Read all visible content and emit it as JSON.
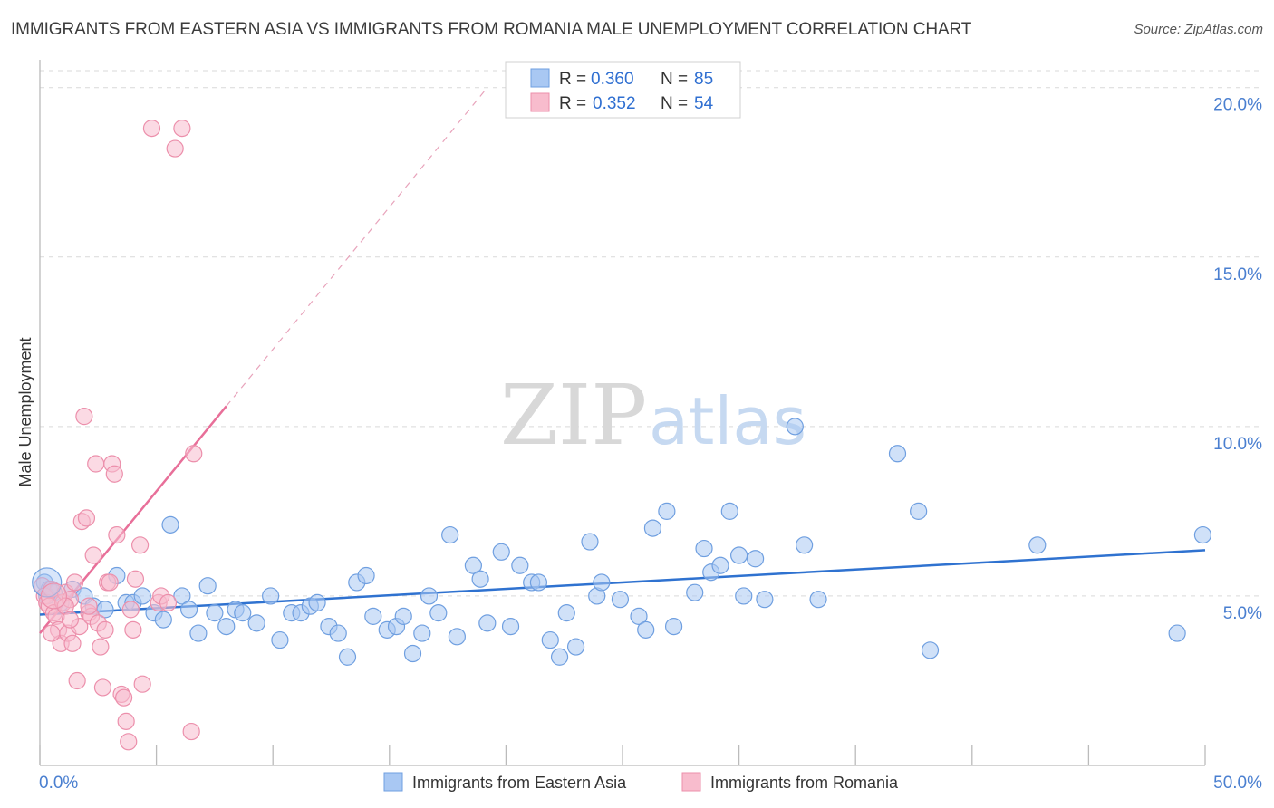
{
  "title": "IMMIGRANTS FROM EASTERN ASIA VS IMMIGRANTS FROM ROMANIA MALE UNEMPLOYMENT CORRELATION CHART",
  "source": "Source: ZipAtlas.com",
  "watermark": {
    "zip": "ZIP",
    "atlas": "atlas"
  },
  "colors": {
    "blue_fill": "#a9c8f3",
    "blue_stroke": "#6f9fe0",
    "blue_line": "#2f72d0",
    "pink_fill": "#f8bccd",
    "pink_stroke": "#ec8fab",
    "pink_line": "#e86f99",
    "grid": "#d9d9d9",
    "tick_text": "#4a7fd0"
  },
  "legend": {
    "series1": {
      "r_label": "R =",
      "r_value": "0.360",
      "n_label": "N =",
      "n_value": "85"
    },
    "series2": {
      "r_label": "R =",
      "r_value": "0.352",
      "n_label": "N =",
      "n_value": "54"
    }
  },
  "chart_data": {
    "type": "scatter",
    "title": "IMMIGRANTS FROM EASTERN ASIA VS IMMIGRANTS FROM ROMANIA MALE UNEMPLOYMENT CORRELATION CHART",
    "xlabel": "",
    "ylabel": "Male Unemployment",
    "xlim": [
      0,
      50
    ],
    "ylim": [
      0,
      20.5
    ],
    "x_tick_labels": [
      "0.0%",
      "50.0%"
    ],
    "y_ticks": [
      5,
      10,
      15,
      20
    ],
    "y_tick_labels": [
      "5.0%",
      "10.0%",
      "15.0%",
      "20.0%"
    ],
    "grid": true,
    "legend_position": "bottom",
    "series": [
      {
        "name": "Immigrants from Eastern Asia",
        "color": "blue",
        "r": 0.36,
        "n": 85,
        "trend": {
          "x": [
            0,
            50
          ],
          "y": [
            4.45,
            6.35
          ]
        },
        "points": [
          [
            0.2,
            5.4
          ],
          [
            0.3,
            5.0
          ],
          [
            0.4,
            5.2
          ],
          [
            0.6,
            5.1
          ],
          [
            0.9,
            4.8
          ],
          [
            1.4,
            5.2
          ],
          [
            1.9,
            5.0
          ],
          [
            2.3,
            4.7
          ],
          [
            2.8,
            4.6
          ],
          [
            3.3,
            5.6
          ],
          [
            3.7,
            4.8
          ],
          [
            4.0,
            4.8
          ],
          [
            4.4,
            5.0
          ],
          [
            4.9,
            4.5
          ],
          [
            5.3,
            4.3
          ],
          [
            5.6,
            7.1
          ],
          [
            6.1,
            5.0
          ],
          [
            6.4,
            4.6
          ],
          [
            6.8,
            3.9
          ],
          [
            7.2,
            5.3
          ],
          [
            7.5,
            4.5
          ],
          [
            8.0,
            4.1
          ],
          [
            8.4,
            4.6
          ],
          [
            8.7,
            4.5
          ],
          [
            9.3,
            4.2
          ],
          [
            9.9,
            5.0
          ],
          [
            10.3,
            3.7
          ],
          [
            10.8,
            4.5
          ],
          [
            11.2,
            4.5
          ],
          [
            11.6,
            4.7
          ],
          [
            11.9,
            4.8
          ],
          [
            12.4,
            4.1
          ],
          [
            12.8,
            3.9
          ],
          [
            13.2,
            3.2
          ],
          [
            13.6,
            5.4
          ],
          [
            14.0,
            5.6
          ],
          [
            14.3,
            4.4
          ],
          [
            14.9,
            4.0
          ],
          [
            15.3,
            4.1
          ],
          [
            15.6,
            4.4
          ],
          [
            16.0,
            3.3
          ],
          [
            16.4,
            3.9
          ],
          [
            16.7,
            5.0
          ],
          [
            17.1,
            4.5
          ],
          [
            17.6,
            6.8
          ],
          [
            17.9,
            3.8
          ],
          [
            18.6,
            5.9
          ],
          [
            18.9,
            5.5
          ],
          [
            19.2,
            4.2
          ],
          [
            19.8,
            6.3
          ],
          [
            20.2,
            4.1
          ],
          [
            20.6,
            5.9
          ],
          [
            21.1,
            5.4
          ],
          [
            21.4,
            5.4
          ],
          [
            21.9,
            3.7
          ],
          [
            22.3,
            3.2
          ],
          [
            22.6,
            4.5
          ],
          [
            23.0,
            3.5
          ],
          [
            23.6,
            6.6
          ],
          [
            23.9,
            5.0
          ],
          [
            24.1,
            5.4
          ],
          [
            24.9,
            4.9
          ],
          [
            25.7,
            4.4
          ],
          [
            26.0,
            4.0
          ],
          [
            26.3,
            7.0
          ],
          [
            26.9,
            7.5
          ],
          [
            27.2,
            4.1
          ],
          [
            28.1,
            5.1
          ],
          [
            28.5,
            6.4
          ],
          [
            28.8,
            5.7
          ],
          [
            29.2,
            5.9
          ],
          [
            29.6,
            7.5
          ],
          [
            30.0,
            6.2
          ],
          [
            30.2,
            5.0
          ],
          [
            30.7,
            6.1
          ],
          [
            31.1,
            4.9
          ],
          [
            32.4,
            10.0
          ],
          [
            32.8,
            6.5
          ],
          [
            33.4,
            4.9
          ],
          [
            36.8,
            9.2
          ],
          [
            37.7,
            7.5
          ],
          [
            38.2,
            3.4
          ],
          [
            42.8,
            6.5
          ],
          [
            48.8,
            3.9
          ],
          [
            49.9,
            6.8
          ]
        ]
      },
      {
        "name": "Immigrants from Romania",
        "color": "pink",
        "r": 0.352,
        "n": 54,
        "trend": {
          "x": [
            0,
            8.0
          ],
          "y": [
            3.9,
            10.6
          ]
        },
        "trend_dashed_extension": {
          "x": [
            8.0,
            19.2
          ],
          "y": [
            10.6,
            20.0
          ]
        },
        "points": [
          [
            0.1,
            5.3
          ],
          [
            0.2,
            5.0
          ],
          [
            0.3,
            4.8
          ],
          [
            0.4,
            4.7
          ],
          [
            0.5,
            5.2
          ],
          [
            0.6,
            4.5
          ],
          [
            0.7,
            4.4
          ],
          [
            0.8,
            4.0
          ],
          [
            0.9,
            3.6
          ],
          [
            1.0,
            4.8
          ],
          [
            1.1,
            5.1
          ],
          [
            1.2,
            3.9
          ],
          [
            1.3,
            4.9
          ],
          [
            1.4,
            3.6
          ],
          [
            1.5,
            5.4
          ],
          [
            1.6,
            2.5
          ],
          [
            1.7,
            4.1
          ],
          [
            1.8,
            7.2
          ],
          [
            1.9,
            10.3
          ],
          [
            2.0,
            7.3
          ],
          [
            2.1,
            4.5
          ],
          [
            2.2,
            4.4
          ],
          [
            2.3,
            6.2
          ],
          [
            2.4,
            8.9
          ],
          [
            2.5,
            4.2
          ],
          [
            2.6,
            3.5
          ],
          [
            2.7,
            2.3
          ],
          [
            2.8,
            4.0
          ],
          [
            2.9,
            5.4
          ],
          [
            3.0,
            5.4
          ],
          [
            3.1,
            8.9
          ],
          [
            3.2,
            8.6
          ],
          [
            3.3,
            6.8
          ],
          [
            3.5,
            2.1
          ],
          [
            3.6,
            2.0
          ],
          [
            3.7,
            1.3
          ],
          [
            3.8,
            0.7
          ],
          [
            3.9,
            4.6
          ],
          [
            4.0,
            4.0
          ],
          [
            4.1,
            5.5
          ],
          [
            4.3,
            6.5
          ],
          [
            4.4,
            2.4
          ],
          [
            4.8,
            18.8
          ],
          [
            5.1,
            4.8
          ],
          [
            5.2,
            5.0
          ],
          [
            5.5,
            4.8
          ],
          [
            5.8,
            18.2
          ],
          [
            6.1,
            18.8
          ],
          [
            6.5,
            1.0
          ],
          [
            6.6,
            9.2
          ],
          [
            1.1,
            4.7
          ],
          [
            1.3,
            4.3
          ],
          [
            2.1,
            4.7
          ],
          [
            0.5,
            3.9
          ]
        ]
      }
    ]
  },
  "bottom_legend": {
    "series1_label": "Immigrants from Eastern Asia",
    "series2_label": "Immigrants from Romania"
  }
}
